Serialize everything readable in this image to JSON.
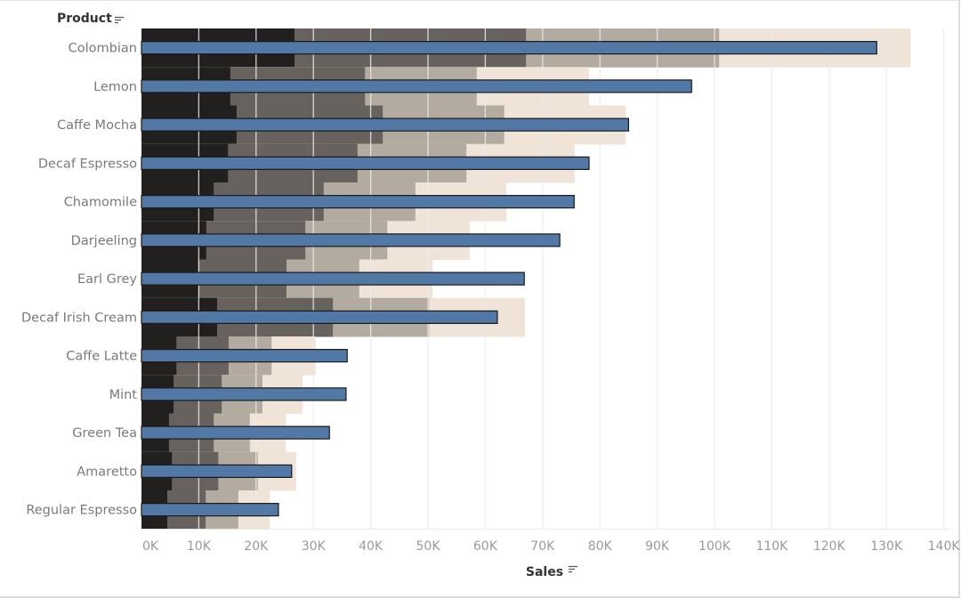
{
  "chart_data": {
    "type": "bar",
    "subtype": "bullet",
    "row_header": "Product",
    "xlabel": "Sales",
    "xlim": [
      0,
      140000
    ],
    "x_ticks": [
      0,
      10000,
      20000,
      30000,
      40000,
      50000,
      60000,
      70000,
      80000,
      90000,
      100000,
      110000,
      120000,
      130000,
      140000
    ],
    "x_tick_labels": [
      "0K",
      "10K",
      "20K",
      "30K",
      "40K",
      "50K",
      "60K",
      "70K",
      "80K",
      "90K",
      "100K",
      "110K",
      "120K",
      "130K",
      "140K"
    ],
    "grid": "vertical",
    "categories": [
      "Colombian",
      "Lemon",
      "Caffe Mocha",
      "Decaf Espresso",
      "Chamomile",
      "Darjeeling",
      "Earl Grey",
      "Decaf Irish Cream",
      "Caffe Latte",
      "Mint",
      "Green Tea",
      "Amaretto",
      "Regular Espresso"
    ],
    "values": [
      128300,
      96000,
      85000,
      78100,
      75500,
      73000,
      66800,
      62100,
      35900,
      35700,
      32800,
      26200,
      23900
    ],
    "band_edges": [
      [
        26700,
        67100,
        100800,
        134200
      ],
      [
        15500,
        39000,
        58500,
        78100
      ],
      [
        16600,
        42100,
        63300,
        84500
      ],
      [
        15100,
        37700,
        56700,
        75600
      ],
      [
        12600,
        31800,
        47800,
        63700
      ],
      [
        11300,
        28600,
        42900,
        57300
      ],
      [
        9900,
        25300,
        38000,
        50800
      ],
      [
        13200,
        33400,
        50200,
        66900
      ],
      [
        6100,
        15200,
        22700,
        30400
      ],
      [
        5600,
        14000,
        21100,
        28100
      ],
      [
        4800,
        12600,
        18900,
        25200
      ],
      [
        5300,
        13400,
        20300,
        27000
      ],
      [
        4500,
        11200,
        16900,
        22400
      ]
    ],
    "colors": {
      "bar": "#5278a6",
      "bar_outline": "#1a1a1a",
      "bands": [
        "#22201e",
        "#67625d",
        "#b3aaa0",
        "#f0e4d9"
      ],
      "grid": "#efefef"
    }
  }
}
